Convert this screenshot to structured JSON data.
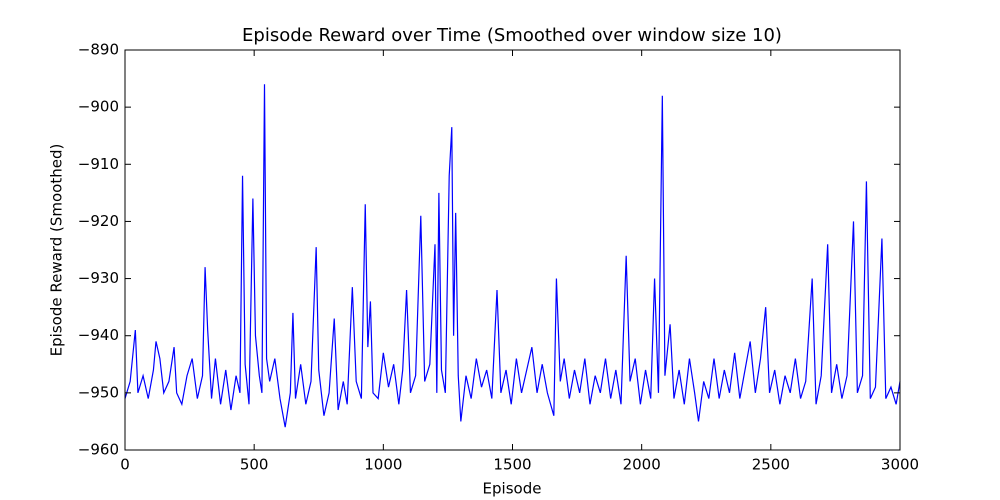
{
  "chart_data": {
    "type": "line",
    "title": "Episode Reward over Time (Smoothed over window size 10)",
    "x_label": "Episode",
    "y_label": "Episode Reward (Smoothed)",
    "color": "#0000ff",
    "xlim": [
      0,
      3000
    ],
    "ylim": [
      -960,
      -890
    ],
    "xticks": [
      0,
      500,
      1000,
      1500,
      2000,
      2500,
      3000
    ],
    "yticks": [
      {
        "value": -960,
        "label": "−960"
      },
      {
        "value": -950,
        "label": "−950"
      },
      {
        "value": -940,
        "label": "−940"
      },
      {
        "value": -930,
        "label": "−930"
      },
      {
        "value": -920,
        "label": "−920"
      },
      {
        "value": -910,
        "label": "−910"
      },
      {
        "value": -900,
        "label": "−900"
      },
      {
        "value": -890,
        "label": "−890"
      }
    ],
    "x": [
      0,
      20,
      40,
      50,
      70,
      90,
      110,
      120,
      135,
      150,
      170,
      190,
      200,
      220,
      240,
      260,
      280,
      300,
      310,
      320,
      335,
      350,
      370,
      390,
      410,
      430,
      445,
      455,
      465,
      480,
      495,
      505,
      520,
      530,
      540,
      548,
      560,
      580,
      600,
      620,
      640,
      650,
      660,
      680,
      700,
      720,
      740,
      750,
      770,
      790,
      810,
      825,
      845,
      860,
      880,
      895,
      915,
      930,
      940,
      950,
      960,
      980,
      1000,
      1020,
      1040,
      1060,
      1075,
      1090,
      1105,
      1125,
      1145,
      1160,
      1180,
      1200,
      1207,
      1215,
      1225,
      1240,
      1255,
      1265,
      1272,
      1280,
      1290,
      1300,
      1320,
      1340,
      1360,
      1380,
      1400,
      1420,
      1440,
      1455,
      1475,
      1495,
      1515,
      1535,
      1555,
      1575,
      1595,
      1615,
      1635,
      1660,
      1670,
      1685,
      1700,
      1720,
      1740,
      1760,
      1780,
      1800,
      1820,
      1840,
      1860,
      1880,
      1900,
      1920,
      1940,
      1955,
      1975,
      1995,
      2015,
      2035,
      2050,
      2065,
      2080,
      2090,
      2110,
      2125,
      2145,
      2165,
      2185,
      2205,
      2220,
      2240,
      2260,
      2280,
      2300,
      2320,
      2340,
      2360,
      2380,
      2400,
      2420,
      2440,
      2460,
      2480,
      2495,
      2515,
      2535,
      2555,
      2575,
      2595,
      2615,
      2635,
      2660,
      2675,
      2695,
      2720,
      2735,
      2755,
      2775,
      2795,
      2820,
      2835,
      2855,
      2870,
      2885,
      2905,
      2930,
      2945,
      2965,
      2985,
      3000
    ],
    "values": [
      -951,
      -948,
      -939,
      -950,
      -947,
      -951,
      -946,
      -941,
      -944,
      -950,
      -948,
      -942,
      -950,
      -952,
      -947,
      -944,
      -951,
      -947,
      -928,
      -939,
      -951,
      -944,
      -952,
      -946,
      -953,
      -947,
      -950,
      -912,
      -945,
      -952,
      -916,
      -940,
      -947,
      -950,
      -896,
      -944,
      -948,
      -944,
      -951,
      -956,
      -950,
      -936,
      -951,
      -945,
      -952,
      -948,
      -924.5,
      -946,
      -954,
      -950,
      -937,
      -953,
      -948,
      -952,
      -931.5,
      -948,
      -951,
      -917,
      -942,
      -934,
      -950,
      -951,
      -943,
      -949,
      -945,
      -952,
      -946,
      -932,
      -950,
      -947,
      -919,
      -948,
      -945,
      -924,
      -950,
      -915,
      -946,
      -950,
      -912,
      -903.5,
      -940,
      -918.5,
      -947,
      -955,
      -947,
      -951,
      -944,
      -949,
      -946,
      -951,
      -932,
      -950,
      -946,
      -952,
      -944,
      -950,
      -946,
      -942,
      -950,
      -945,
      -950,
      -954,
      -930,
      -948,
      -944,
      -951,
      -946,
      -950,
      -944,
      -952,
      -947,
      -950,
      -944,
      -951,
      -946,
      -952,
      -926,
      -948,
      -944,
      -952,
      -946,
      -951,
      -930,
      -950,
      -898,
      -947,
      -938,
      -951,
      -946,
      -952,
      -944,
      -950,
      -955,
      -948,
      -951,
      -944,
      -951,
      -946,
      -950,
      -943,
      -951,
      -946,
      -941,
      -950,
      -944,
      -935,
      -950,
      -946,
      -952,
      -947,
      -950,
      -944,
      -951,
      -948,
      -930,
      -952,
      -947,
      -924,
      -950,
      -945,
      -951,
      -947,
      -920,
      -950,
      -947,
      -913,
      -951,
      -949,
      -923,
      -951,
      -949,
      -952,
      -948
    ]
  }
}
